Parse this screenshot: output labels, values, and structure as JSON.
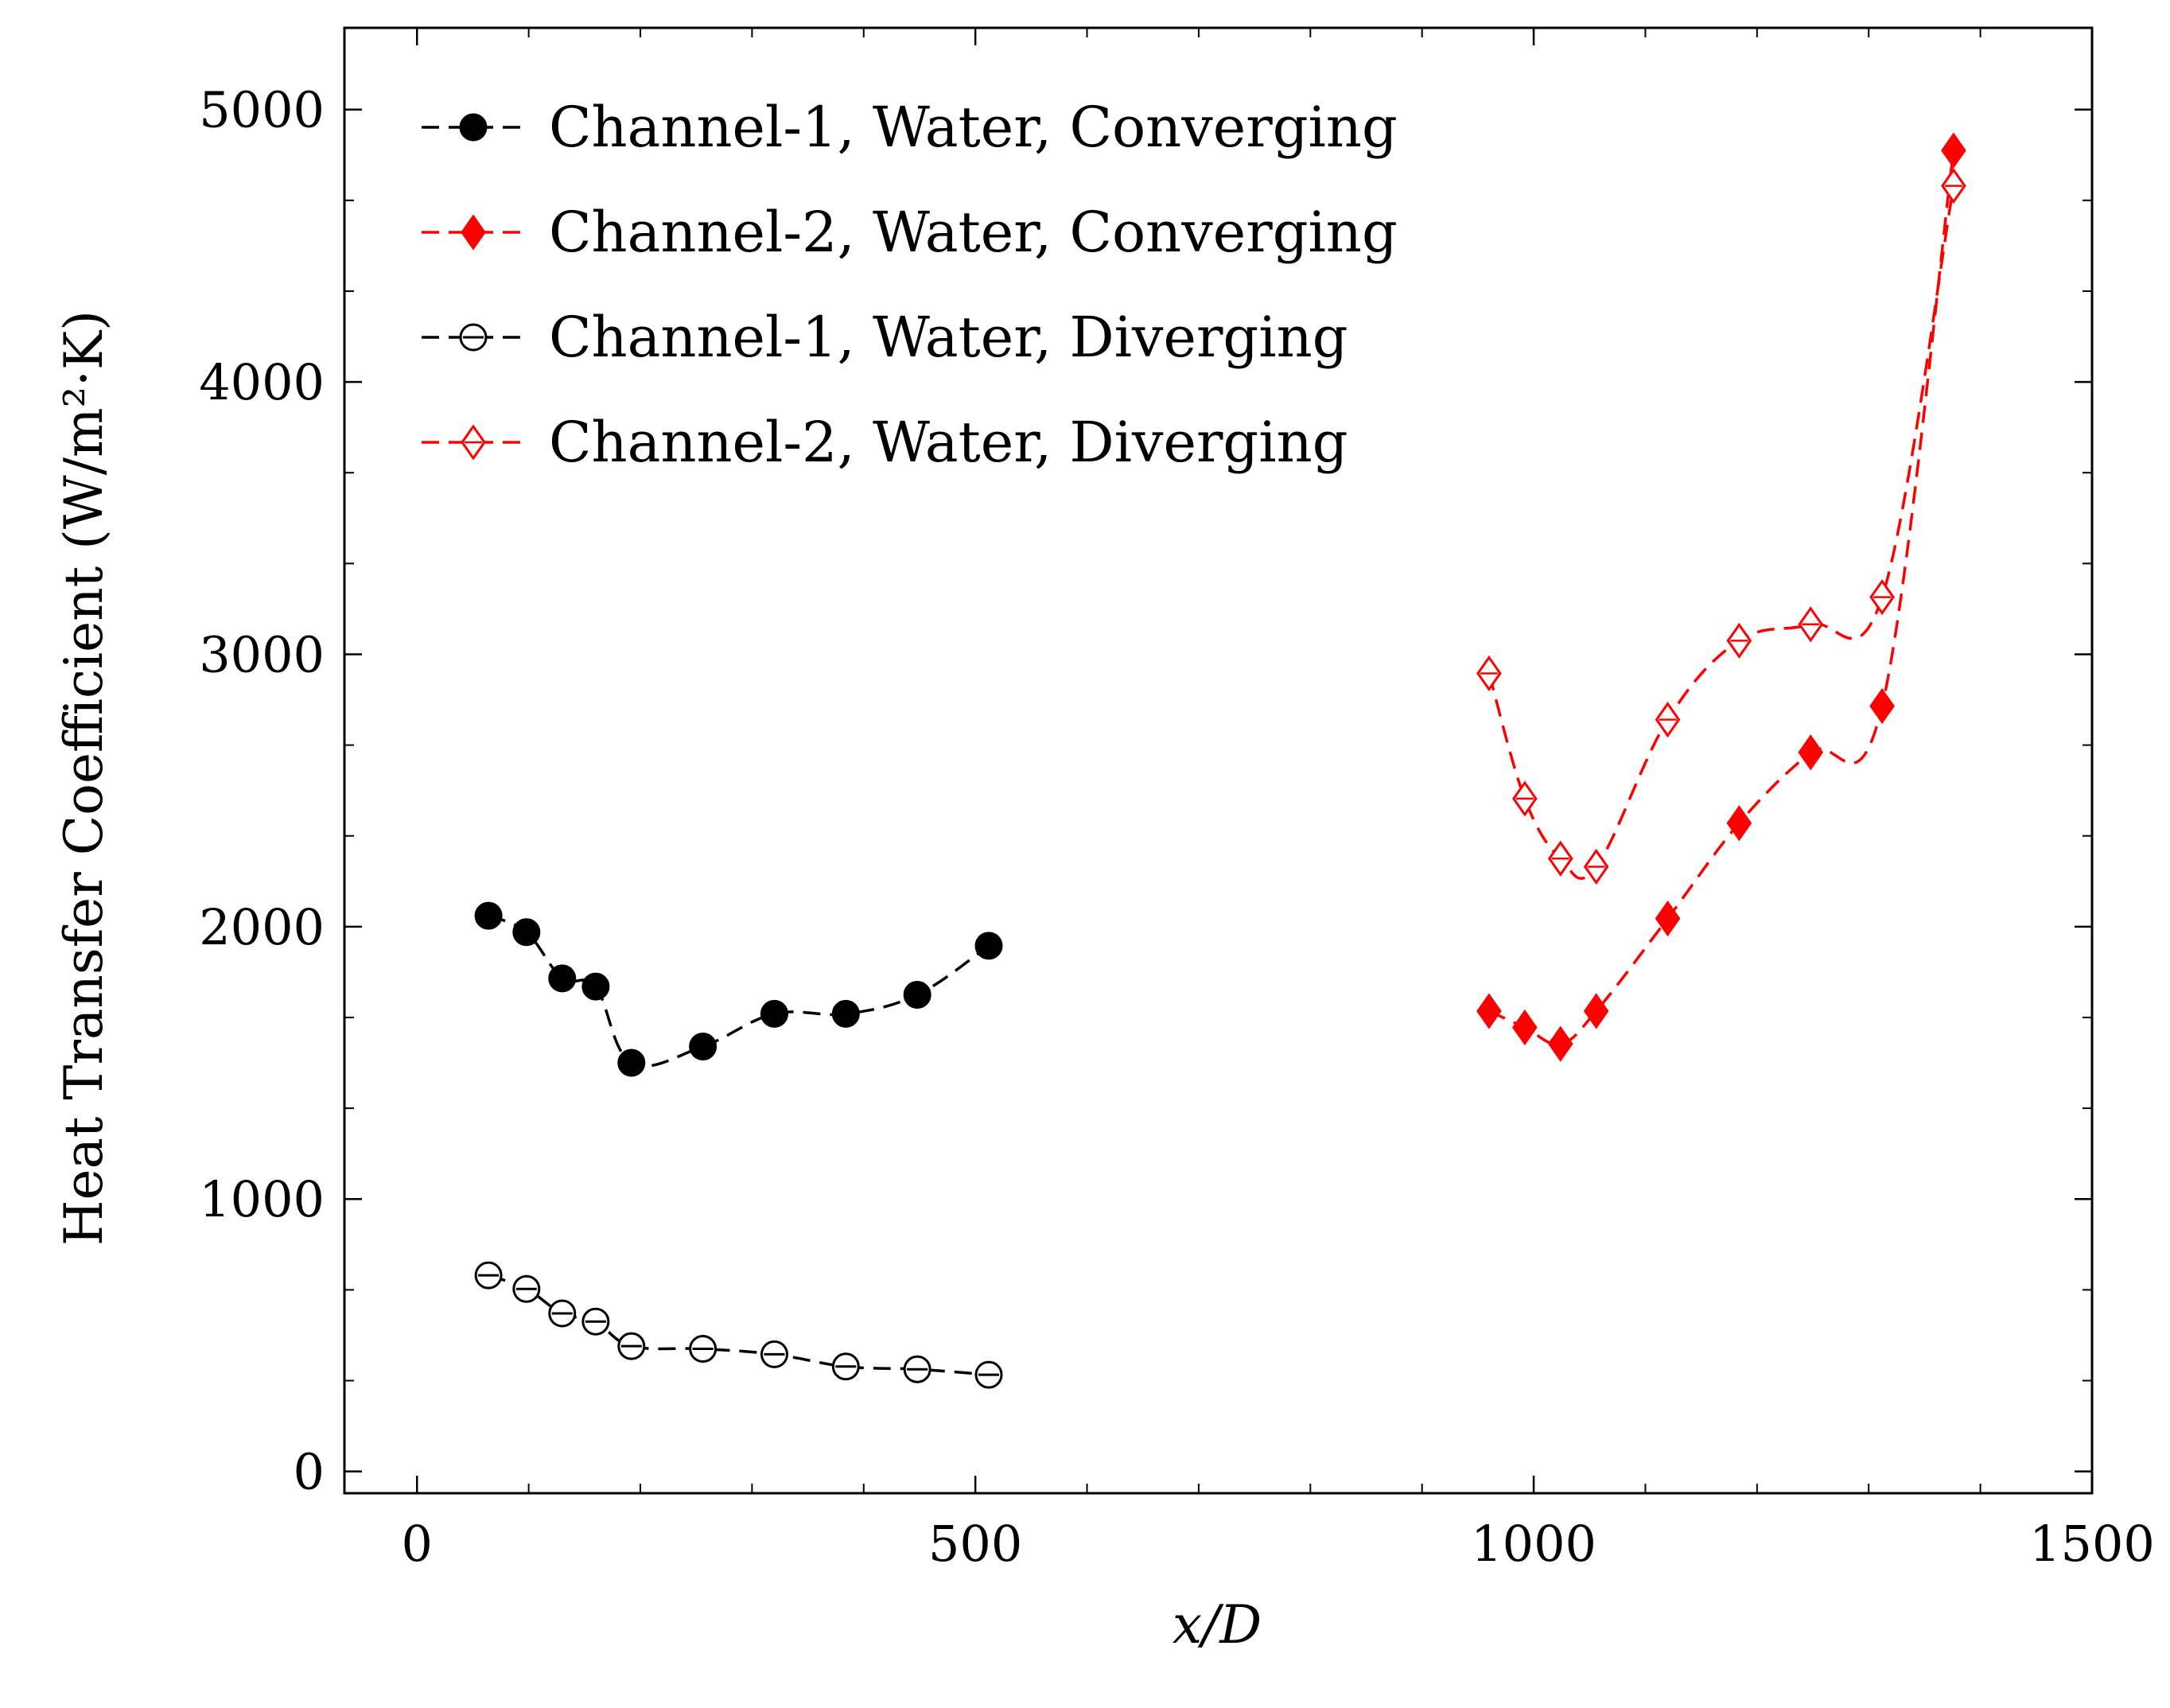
{
  "chart_data": {
    "type": "line",
    "xlabel": "x/D",
    "ylabel": "Heat Transfer Coefficient (W/m²·K)",
    "xlim": [
      -65,
      1500
    ],
    "ylim": [
      -80,
      5300
    ],
    "xticks": [
      0,
      500,
      1000,
      1500
    ],
    "yticks": [
      0,
      1000,
      2000,
      3000,
      4000,
      5000
    ],
    "legend_position": "top-left",
    "grid": false,
    "series": [
      {
        "name": "Channel-1, Water, Converging",
        "color": "#000000",
        "marker": "circle-filled",
        "x": [
          64,
          98,
          130,
          160,
          192,
          256,
          320,
          384,
          448,
          512
        ],
        "y": [
          2040,
          1980,
          1810,
          1780,
          1500,
          1560,
          1680,
          1680,
          1750,
          1930
        ]
      },
      {
        "name": "Channel-2, Water, Converging",
        "color": "#ff0000",
        "marker": "diamond-filled",
        "x": [
          960,
          992,
          1024,
          1056,
          1120,
          1184,
          1248,
          1312,
          1376
        ],
        "y": [
          1690,
          1630,
          1570,
          1690,
          2030,
          2380,
          2640,
          2810,
          4850
        ]
      },
      {
        "name": "Channel-1, Water, Diverging",
        "color": "#000000",
        "marker": "circle-open",
        "x": [
          64,
          98,
          130,
          160,
          192,
          256,
          320,
          384,
          448,
          512
        ],
        "y": [
          720,
          670,
          580,
          550,
          460,
          450,
          430,
          385,
          375,
          355
        ]
      },
      {
        "name": "Channel-2, Water, Diverging",
        "color": "#ff0000",
        "marker": "diamond-open",
        "x": [
          960,
          992,
          1024,
          1056,
          1120,
          1184,
          1248,
          1312,
          1376
        ],
        "y": [
          2930,
          2470,
          2250,
          2220,
          2760,
          3050,
          3110,
          3210,
          4720
        ]
      }
    ]
  }
}
